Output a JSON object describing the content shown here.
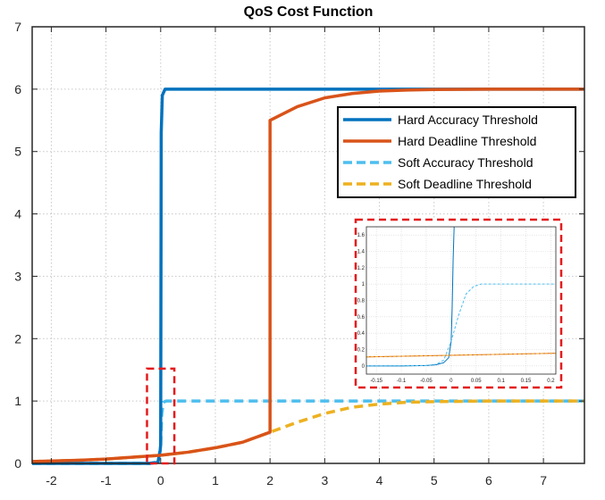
{
  "chart_data": {
    "type": "line",
    "title": "QoS Cost Function",
    "xlabel": "",
    "ylabel": "",
    "xlim": [
      -2.35,
      7.75
    ],
    "ylim": [
      0,
      7
    ],
    "xticks": [
      -2,
      -1,
      0,
      1,
      2,
      3,
      4,
      5,
      6,
      7
    ],
    "yticks": [
      0,
      1,
      2,
      3,
      4,
      5,
      6,
      7
    ],
    "grid": true,
    "legend_position": "top-right",
    "series": [
      {
        "name": "Hard Accuracy Threshold",
        "color": "#0072BD",
        "style": "solid",
        "x": [
          -2.35,
          -0.2,
          -0.05,
          -0.01,
          0,
          0.01,
          0.03,
          0.08,
          1,
          3,
          5,
          7.75
        ],
        "y": [
          0,
          0,
          0.02,
          0.2,
          0.3,
          5.3,
          5.9,
          6,
          6,
          6,
          6,
          6
        ]
      },
      {
        "name": "Hard Deadline Threshold",
        "color": "#D95319",
        "style": "solid",
        "x": [
          -2.35,
          -1.5,
          -1,
          -0.5,
          0,
          0.5,
          1,
          1.5,
          2,
          2,
          2.5,
          3,
          3.5,
          4,
          4.5,
          5,
          6,
          7,
          7.75
        ],
        "y": [
          0.03,
          0.05,
          0.07,
          0.1,
          0.13,
          0.18,
          0.25,
          0.34,
          0.5,
          5.5,
          5.72,
          5.86,
          5.93,
          5.97,
          5.985,
          5.995,
          6,
          6,
          6
        ]
      },
      {
        "name": "Soft Accuracy Threshold",
        "color": "#4DBEEE",
        "style": "dashed",
        "x": [
          -2.35,
          -0.2,
          -0.05,
          -0.02,
          0,
          0.02,
          0.05,
          0.1,
          1,
          3,
          5,
          7.75
        ],
        "y": [
          0,
          0,
          0.02,
          0.15,
          0.3,
          0.8,
          0.98,
          1,
          1,
          1,
          1,
          1
        ]
      },
      {
        "name": "Soft Deadline Threshold",
        "color": "#EDB120",
        "style": "dashed",
        "x": [
          -2.35,
          -1.5,
          -1,
          -0.5,
          0,
          0.5,
          1,
          1.5,
          2,
          2.5,
          3,
          3.5,
          4,
          4.5,
          5,
          6,
          7,
          7.75
        ],
        "y": [
          0.03,
          0.05,
          0.07,
          0.1,
          0.13,
          0.18,
          0.25,
          0.34,
          0.5,
          0.66,
          0.8,
          0.9,
          0.95,
          0.98,
          0.99,
          1,
          1,
          1
        ]
      }
    ],
    "highlight_box": {
      "x": [
        -0.25,
        0.25
      ],
      "y": [
        0,
        1.52
      ],
      "color": "#E41A1C"
    },
    "inset": {
      "xlim": [
        -0.17,
        0.21
      ],
      "ylim": [
        -0.1,
        1.7
      ],
      "xticks": [
        -0.15,
        -0.1,
        -0.05,
        0,
        0.05,
        0.1,
        0.15,
        0.2
      ],
      "xtick_labels": [
        "-0.15",
        "-0.1",
        "-0.05",
        "0",
        "0.05",
        "0.1",
        "0.15",
        "0.2"
      ],
      "yticks": [
        0,
        0.2,
        0.4,
        0.6,
        0.8,
        1,
        1.2,
        1.4,
        1.6
      ],
      "ytick_labels": [
        "0",
        "0.2",
        "0.4",
        "0.6",
        "0.8",
        "1",
        "1.2",
        "1.4",
        "1.6"
      ],
      "border_color": "#E41A1C",
      "series": [
        {
          "color": "#0072BD",
          "style": "solid",
          "x": [
            -0.17,
            -0.1,
            -0.05,
            -0.03,
            -0.015,
            -0.005,
            0,
            0.002,
            0.004,
            0.006
          ],
          "y": [
            0,
            0,
            0.005,
            0.015,
            0.04,
            0.1,
            0.3,
            0.7,
            1.3,
            1.7
          ]
        },
        {
          "color": "#D95319",
          "style": "solid",
          "x": [
            -0.17,
            0.21
          ],
          "y": [
            0.11,
            0.155
          ]
        },
        {
          "color": "#4DBEEE",
          "style": "dashed",
          "x": [
            -0.17,
            -0.05,
            -0.03,
            -0.015,
            0,
            0.015,
            0.03,
            0.045,
            0.06,
            0.1,
            0.21
          ],
          "y": [
            0,
            0.005,
            0.02,
            0.07,
            0.3,
            0.62,
            0.88,
            0.97,
            1,
            1,
            1
          ]
        },
        {
          "color": "#EDB120",
          "style": "dashed",
          "x": [
            -0.17,
            0.21
          ],
          "y": [
            0.11,
            0.155
          ]
        }
      ]
    }
  }
}
